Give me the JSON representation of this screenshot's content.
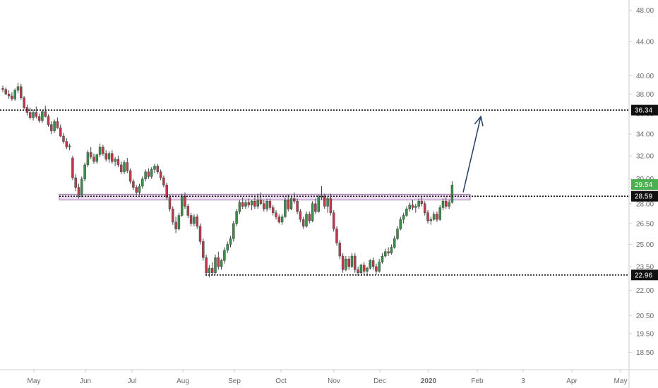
{
  "chart_data": {
    "type": "candlestick",
    "title": "",
    "y_scale": "log",
    "ylim": [
      18.2,
      49.0
    ],
    "y_ticks": [
      "48.00",
      "44.00",
      "40.00",
      "38.00",
      "36.00",
      "34.00",
      "32.00",
      "30.00",
      "28.00",
      "26.50",
      "25.00",
      "23.50",
      "22.00",
      "20.50",
      "19.50",
      "18.50"
    ],
    "x_ticks": [
      "May",
      "Jun",
      "Jul",
      "Aug",
      "Sep",
      "Oct",
      "Nov",
      "Dec",
      "2020",
      "Feb",
      "3",
      "Apr",
      "May"
    ],
    "colors": {
      "up": "#3a8f4a",
      "down": "#c0394b",
      "wick": "#444444",
      "grid_axis": "#cccccc",
      "zone_fill": "#e9dcef",
      "zone_stroke": "#a070b0",
      "arrow": "#1f3f66",
      "level_tag": "#111111",
      "last_price_tag": "#4caf50"
    },
    "levels": [
      {
        "price": 36.34,
        "label": "36.34"
      },
      {
        "price": 28.59,
        "label": "28.59"
      },
      {
        "price": 22.96,
        "label": "22.96"
      }
    ],
    "last_price": {
      "price": 29.54,
      "label": "29.54"
    },
    "resistance_zone": {
      "low": 28.3,
      "high": 28.75
    },
    "projection_arrow": {
      "from_price": 28.9,
      "to_price": 35.7
    },
    "candles": [
      [
        38.6,
        38.9,
        38.2,
        38.5
      ],
      [
        38.5,
        38.7,
        37.9,
        38.0
      ],
      [
        38.0,
        38.4,
        37.5,
        37.8
      ],
      [
        37.8,
        38.2,
        37.3,
        37.5
      ],
      [
        37.5,
        38.6,
        37.3,
        38.4
      ],
      [
        38.4,
        39.2,
        38.1,
        38.8
      ],
      [
        38.8,
        39.1,
        37.4,
        37.6
      ],
      [
        37.6,
        37.8,
        36.4,
        36.6
      ],
      [
        36.6,
        36.9,
        35.8,
        36.1
      ],
      [
        36.1,
        36.6,
        35.4,
        35.6
      ],
      [
        35.6,
        36.4,
        35.3,
        36.1
      ],
      [
        36.1,
        36.7,
        35.5,
        35.7
      ],
      [
        35.7,
        36.0,
        35.1,
        35.3
      ],
      [
        35.3,
        36.3,
        35.1,
        36.2
      ],
      [
        36.2,
        36.8,
        35.6,
        35.7
      ],
      [
        35.7,
        35.9,
        34.7,
        34.9
      ],
      [
        34.9,
        35.2,
        34.0,
        34.3
      ],
      [
        34.3,
        35.4,
        34.1,
        35.2
      ],
      [
        35.2,
        35.6,
        34.5,
        34.6
      ],
      [
        34.6,
        34.9,
        33.7,
        33.8
      ],
      [
        33.8,
        34.1,
        33.1,
        33.3
      ],
      [
        33.3,
        33.6,
        32.6,
        32.8
      ],
      [
        32.8,
        33.1,
        32.5,
        32.9
      ],
      [
        31.8,
        32.0,
        29.9,
        30.1
      ],
      [
        30.1,
        30.4,
        29.0,
        29.3
      ],
      [
        29.3,
        29.6,
        28.4,
        28.7
      ],
      [
        28.7,
        30.2,
        28.5,
        30.0
      ],
      [
        30.0,
        31.4,
        29.8,
        31.2
      ],
      [
        31.2,
        32.5,
        31.0,
        32.3
      ],
      [
        32.3,
        32.8,
        31.7,
        31.9
      ],
      [
        31.9,
        32.2,
        31.3,
        31.5
      ],
      [
        31.5,
        32.2,
        31.3,
        32.1
      ],
      [
        32.1,
        33.1,
        31.9,
        32.8
      ],
      [
        32.8,
        33.0,
        32.0,
        32.2
      ],
      [
        32.2,
        32.5,
        31.5,
        31.7
      ],
      [
        31.7,
        32.4,
        31.4,
        32.2
      ],
      [
        32.2,
        32.5,
        31.3,
        31.5
      ],
      [
        31.5,
        31.9,
        31.1,
        31.7
      ],
      [
        31.7,
        32.0,
        31.0,
        31.2
      ],
      [
        31.2,
        31.5,
        30.4,
        30.6
      ],
      [
        30.6,
        31.6,
        30.4,
        31.4
      ],
      [
        31.4,
        31.8,
        30.5,
        30.7
      ],
      [
        30.7,
        30.9,
        29.6,
        29.8
      ],
      [
        29.8,
        30.0,
        29.1,
        29.3
      ],
      [
        29.3,
        29.5,
        28.7,
        28.9
      ],
      [
        28.9,
        29.6,
        28.7,
        29.4
      ],
      [
        29.4,
        30.2,
        29.2,
        30.0
      ],
      [
        30.0,
        30.8,
        29.8,
        30.6
      ],
      [
        30.6,
        30.9,
        30.0,
        30.2
      ],
      [
        30.2,
        31.0,
        30.0,
        30.8
      ],
      [
        30.8,
        31.3,
        30.5,
        31.1
      ],
      [
        31.1,
        31.3,
        30.4,
        30.6
      ],
      [
        30.6,
        30.8,
        29.9,
        30.1
      ],
      [
        30.1,
        30.3,
        29.3,
        29.5
      ],
      [
        29.5,
        29.7,
        28.3,
        28.5
      ],
      [
        28.5,
        28.7,
        27.4,
        27.6
      ],
      [
        27.6,
        27.8,
        26.4,
        26.6
      ],
      [
        26.6,
        27.0,
        25.8,
        26.1
      ],
      [
        26.1,
        27.3,
        26.0,
        27.1
      ],
      [
        27.1,
        28.8,
        27.0,
        28.6
      ],
      [
        28.6,
        28.9,
        27.6,
        27.8
      ],
      [
        27.8,
        28.0,
        26.9,
        27.1
      ],
      [
        27.1,
        27.3,
        26.3,
        26.5
      ],
      [
        26.5,
        27.2,
        26.3,
        27.0
      ],
      [
        27.0,
        27.2,
        26.1,
        26.3
      ],
      [
        26.3,
        26.5,
        25.0,
        25.2
      ],
      [
        25.2,
        25.4,
        23.9,
        24.1
      ],
      [
        24.1,
        24.3,
        22.9,
        23.1
      ],
      [
        23.1,
        23.6,
        22.8,
        23.4
      ],
      [
        23.4,
        23.8,
        22.9,
        23.1
      ],
      [
        23.1,
        24.3,
        23.0,
        24.1
      ],
      [
        24.1,
        24.5,
        23.3,
        23.5
      ],
      [
        23.5,
        24.0,
        23.3,
        23.9
      ],
      [
        23.9,
        24.8,
        23.7,
        24.6
      ],
      [
        24.6,
        25.2,
        24.4,
        25.0
      ],
      [
        25.0,
        25.6,
        24.8,
        25.4
      ],
      [
        25.4,
        26.7,
        25.2,
        26.5
      ],
      [
        26.5,
        27.6,
        26.3,
        27.4
      ],
      [
        27.4,
        28.3,
        27.2,
        28.1
      ],
      [
        28.1,
        28.5,
        27.6,
        27.8
      ],
      [
        27.8,
        28.3,
        27.6,
        28.1
      ],
      [
        28.1,
        28.4,
        27.7,
        27.9
      ],
      [
        27.9,
        28.3,
        27.5,
        28.2
      ],
      [
        28.2,
        28.5,
        27.6,
        27.8
      ],
      [
        27.8,
        28.8,
        27.6,
        28.3
      ],
      [
        28.3,
        28.9,
        27.9,
        28.0
      ],
      [
        28.0,
        28.3,
        27.4,
        27.6
      ],
      [
        27.6,
        28.4,
        27.4,
        28.2
      ],
      [
        28.2,
        28.4,
        27.5,
        27.7
      ],
      [
        27.7,
        27.9,
        27.1,
        27.3
      ],
      [
        27.3,
        27.5,
        26.8,
        27.0
      ],
      [
        27.0,
        27.2,
        26.5,
        26.6
      ],
      [
        26.6,
        27.2,
        26.4,
        27.0
      ],
      [
        27.0,
        28.5,
        26.9,
        28.3
      ],
      [
        28.3,
        28.7,
        27.4,
        27.6
      ],
      [
        27.6,
        28.6,
        27.5,
        28.4
      ],
      [
        28.4,
        28.9,
        28.0,
        28.2
      ],
      [
        28.2,
        28.4,
        27.2,
        27.4
      ],
      [
        27.4,
        27.6,
        26.6,
        26.8
      ],
      [
        26.8,
        27.0,
        26.1,
        26.3
      ],
      [
        26.3,
        27.4,
        26.2,
        27.2
      ],
      [
        27.2,
        27.4,
        26.5,
        26.7
      ],
      [
        26.7,
        28.2,
        26.6,
        28.0
      ],
      [
        28.0,
        28.4,
        27.2,
        27.4
      ],
      [
        27.4,
        28.7,
        27.3,
        28.5
      ],
      [
        28.5,
        29.4,
        28.3,
        28.6
      ],
      [
        28.6,
        28.8,
        27.6,
        27.8
      ],
      [
        27.8,
        28.6,
        27.3,
        28.4
      ],
      [
        28.4,
        28.8,
        27.1,
        27.3
      ],
      [
        27.3,
        27.5,
        25.9,
        26.1
      ],
      [
        26.1,
        26.3,
        24.9,
        25.1
      ],
      [
        25.1,
        25.3,
        24.0,
        24.2
      ],
      [
        24.2,
        24.4,
        23.1,
        23.3
      ],
      [
        23.3,
        24.2,
        23.2,
        24.0
      ],
      [
        24.0,
        24.2,
        23.3,
        23.5
      ],
      [
        23.5,
        24.4,
        23.4,
        24.2
      ],
      [
        24.2,
        24.4,
        23.1,
        23.3
      ],
      [
        23.3,
        23.5,
        22.9,
        23.1
      ],
      [
        23.1,
        23.7,
        22.9,
        23.6
      ],
      [
        23.6,
        23.8,
        23.0,
        23.2
      ],
      [
        23.2,
        23.5,
        22.9,
        23.4
      ],
      [
        23.4,
        24.0,
        23.3,
        23.9
      ],
      [
        23.9,
        24.1,
        23.3,
        23.5
      ],
      [
        23.5,
        23.7,
        23.0,
        23.2
      ],
      [
        23.2,
        24.0,
        23.1,
        23.8
      ],
      [
        23.8,
        24.4,
        23.7,
        24.2
      ],
      [
        24.2,
        24.7,
        24.1,
        24.5
      ],
      [
        24.5,
        24.8,
        24.2,
        24.4
      ],
      [
        24.4,
        25.0,
        24.3,
        24.8
      ],
      [
        24.8,
        25.6,
        24.7,
        25.4
      ],
      [
        25.4,
        26.3,
        25.3,
        26.1
      ],
      [
        26.1,
        27.0,
        26.0,
        26.8
      ],
      [
        26.8,
        27.3,
        26.5,
        27.1
      ],
      [
        27.1,
        27.8,
        27.0,
        27.6
      ],
      [
        27.6,
        28.1,
        27.4,
        27.9
      ],
      [
        27.9,
        28.3,
        27.5,
        27.7
      ],
      [
        27.7,
        28.0,
        27.3,
        27.8
      ],
      [
        27.8,
        28.4,
        27.6,
        28.2
      ],
      [
        28.2,
        28.6,
        27.8,
        28.0
      ],
      [
        28.0,
        28.2,
        27.1,
        27.3
      ],
      [
        27.3,
        27.5,
        26.5,
        26.7
      ],
      [
        26.7,
        27.0,
        26.4,
        26.8
      ],
      [
        26.8,
        27.4,
        26.7,
        27.2
      ],
      [
        27.2,
        27.4,
        26.6,
        26.8
      ],
      [
        26.8,
        27.9,
        26.7,
        27.7
      ],
      [
        27.7,
        28.4,
        27.5,
        28.2
      ],
      [
        28.2,
        28.5,
        27.6,
        27.8
      ],
      [
        27.8,
        28.3,
        27.6,
        28.1
      ],
      [
        28.1,
        29.8,
        28.0,
        29.5
      ]
    ]
  }
}
